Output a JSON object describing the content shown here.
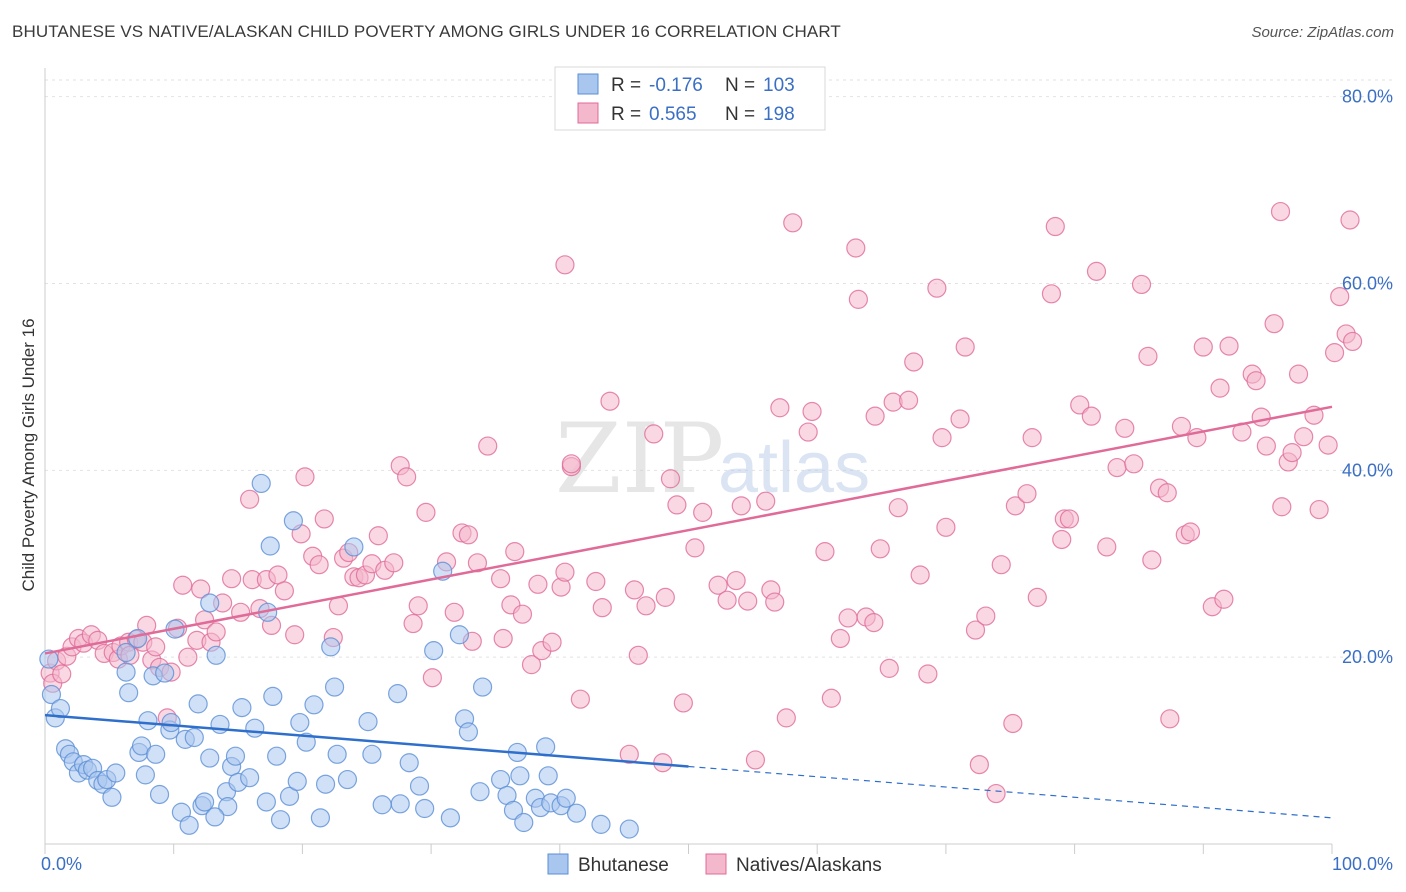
{
  "title": "BHUTANESE VS NATIVE/ALASKAN CHILD POVERTY AMONG GIRLS UNDER 16 CORRELATION CHART",
  "source": "Source: ZipAtlas.com",
  "watermark": {
    "zip": "ZIP",
    "atlas": "atlas"
  },
  "colors": {
    "blue": "#5b8fd6",
    "blue_fill": "#a9c6ee",
    "pink": "#e06a98",
    "pink_fill": "#f4b8cc",
    "tick": "#3b6fc4"
  },
  "legend": {
    "rows": [
      {
        "r_label": "R =",
        "r_value": "-0.176",
        "n_label": "N =",
        "n_value": "103"
      },
      {
        "r_label": "R =",
        "r_value": "0.565",
        "n_label": "N =",
        "n_value": "198"
      }
    ]
  },
  "chart_data": {
    "type": "scatter",
    "title": "BHUTANESE VS NATIVE/ALASKAN CHILD POVERTY AMONG GIRLS UNDER 16 CORRELATION CHART",
    "xlabel": "",
    "ylabel": "Child Poverty Among Girls Under 16",
    "xlim": [
      0,
      100
    ],
    "ylim": [
      0,
      82
    ],
    "x_ticks": [
      "0.0%",
      "100.0%"
    ],
    "y_ticks": [
      {
        "value": 20,
        "label": "20.0%"
      },
      {
        "value": 40,
        "label": "40.0%"
      },
      {
        "value": 60,
        "label": "60.0%"
      },
      {
        "value": 80,
        "label": "80.0%"
      }
    ],
    "grid": true,
    "legend_position": "top-center",
    "series": [
      {
        "name": "Bhutanese",
        "r": -0.176,
        "n": 103,
        "trend": {
          "x0": 0,
          "y0": 13.8,
          "x1": 50,
          "y1": 8.3,
          "dashed_to_x": 100,
          "dashed_to_y": 2.8
        },
        "points": [
          [
            0.3,
            19.8
          ],
          [
            0.5,
            16.0
          ],
          [
            0.8,
            13.5
          ],
          [
            1.2,
            14.5
          ],
          [
            1.6,
            10.2
          ],
          [
            1.9,
            9.6
          ],
          [
            2.2,
            8.8
          ],
          [
            2.6,
            7.6
          ],
          [
            3.0,
            8.5
          ],
          [
            3.3,
            7.9
          ],
          [
            3.7,
            8.1
          ],
          [
            4.1,
            6.8
          ],
          [
            4.5,
            6.4
          ],
          [
            4.8,
            6.9
          ],
          [
            5.2,
            5.0
          ],
          [
            5.5,
            7.6
          ],
          [
            6.3,
            20.5
          ],
          [
            6.5,
            16.2
          ],
          [
            6.3,
            18.4
          ],
          [
            7.3,
            9.8
          ],
          [
            7.5,
            10.5
          ],
          [
            7.8,
            7.4
          ],
          [
            8.0,
            13.2
          ],
          [
            8.4,
            18.0
          ],
          [
            8.6,
            9.6
          ],
          [
            8.9,
            5.3
          ],
          [
            9.3,
            18.3
          ],
          [
            9.7,
            12.2
          ],
          [
            9.8,
            13.0
          ],
          [
            10.1,
            23.0
          ],
          [
            10.6,
            3.4
          ],
          [
            10.9,
            11.2
          ],
          [
            11.2,
            2.0
          ],
          [
            11.6,
            11.4
          ],
          [
            11.9,
            15.0
          ],
          [
            12.2,
            4.1
          ],
          [
            12.4,
            4.5
          ],
          [
            12.8,
            9.2
          ],
          [
            12.8,
            25.8
          ],
          [
            13.3,
            20.2
          ],
          [
            13.6,
            12.8
          ],
          [
            14.1,
            5.6
          ],
          [
            14.2,
            4.0
          ],
          [
            14.5,
            8.3
          ],
          [
            14.8,
            9.4
          ],
          [
            15.0,
            6.6
          ],
          [
            15.3,
            14.6
          ],
          [
            15.9,
            7.1
          ],
          [
            16.3,
            12.4
          ],
          [
            16.8,
            38.6
          ],
          [
            17.3,
            24.8
          ],
          [
            17.5,
            31.9
          ],
          [
            17.7,
            15.8
          ],
          [
            18.0,
            9.4
          ],
          [
            18.3,
            2.6
          ],
          [
            19.0,
            5.1
          ],
          [
            19.3,
            34.6
          ],
          [
            19.6,
            6.7
          ],
          [
            19.8,
            13.0
          ],
          [
            20.3,
            10.9
          ],
          [
            20.9,
            14.9
          ],
          [
            21.4,
            2.8
          ],
          [
            21.8,
            6.4
          ],
          [
            22.2,
            21.1
          ],
          [
            22.5,
            16.8
          ],
          [
            22.7,
            9.6
          ],
          [
            24.0,
            31.8
          ],
          [
            25.1,
            13.1
          ],
          [
            25.4,
            9.6
          ],
          [
            27.6,
            4.3
          ],
          [
            27.4,
            16.1
          ],
          [
            29.5,
            3.8
          ],
          [
            30.2,
            20.7
          ],
          [
            30.9,
            29.2
          ],
          [
            31.5,
            2.8
          ],
          [
            32.2,
            22.4
          ],
          [
            32.6,
            13.4
          ],
          [
            32.9,
            12.0
          ],
          [
            34.0,
            16.8
          ],
          [
            35.4,
            6.9
          ],
          [
            35.9,
            5.2
          ],
          [
            36.4,
            3.6
          ],
          [
            36.7,
            9.8
          ],
          [
            36.9,
            7.3
          ],
          [
            38.1,
            4.9
          ],
          [
            38.5,
            3.9
          ],
          [
            38.9,
            10.4
          ],
          [
            39.1,
            7.3
          ],
          [
            39.3,
            4.4
          ],
          [
            40.1,
            4.1
          ],
          [
            40.5,
            4.9
          ],
          [
            41.3,
            3.3
          ],
          [
            43.2,
            2.1
          ],
          [
            45.4,
            1.6
          ],
          [
            7.2,
            22.0
          ],
          [
            13.2,
            2.9
          ],
          [
            23.5,
            6.9
          ],
          [
            26.2,
            4.2
          ],
          [
            28.3,
            8.7
          ],
          [
            33.8,
            5.6
          ],
          [
            37.2,
            2.3
          ],
          [
            29.1,
            6.2
          ],
          [
            17.2,
            4.5
          ]
        ]
      },
      {
        "name": "Natives/Alaskans",
        "r": 0.565,
        "n": 198,
        "trend": {
          "x0": 0,
          "y0": 20.4,
          "x1": 100,
          "y1": 46.8
        },
        "points": [
          [
            0.4,
            18.3
          ],
          [
            0.6,
            17.2
          ],
          [
            0.9,
            19.6
          ],
          [
            1.3,
            18.2
          ],
          [
            1.7,
            20.1
          ],
          [
            2.1,
            21.1
          ],
          [
            2.6,
            22.0
          ],
          [
            3.0,
            21.5
          ],
          [
            3.6,
            22.4
          ],
          [
            4.1,
            21.8
          ],
          [
            4.6,
            20.4
          ],
          [
            5.3,
            20.5
          ],
          [
            5.7,
            19.8
          ],
          [
            5.9,
            21.2
          ],
          [
            6.5,
            21.6
          ],
          [
            6.6,
            20.2
          ],
          [
            7.1,
            21.9
          ],
          [
            7.6,
            21.6
          ],
          [
            7.9,
            23.4
          ],
          [
            8.3,
            19.7
          ],
          [
            8.6,
            21.1
          ],
          [
            8.9,
            18.9
          ],
          [
            9.5,
            13.5
          ],
          [
            9.8,
            18.4
          ],
          [
            10.3,
            23.1
          ],
          [
            10.7,
            27.7
          ],
          [
            11.1,
            20.0
          ],
          [
            11.8,
            21.8
          ],
          [
            12.1,
            27.3
          ],
          [
            12.4,
            24.0
          ],
          [
            12.9,
            21.6
          ],
          [
            13.3,
            22.7
          ],
          [
            13.8,
            25.8
          ],
          [
            14.5,
            28.4
          ],
          [
            15.2,
            24.8
          ],
          [
            15.9,
            36.9
          ],
          [
            16.1,
            28.3
          ],
          [
            16.7,
            25.2
          ],
          [
            17.2,
            28.3
          ],
          [
            17.6,
            23.4
          ],
          [
            18.1,
            28.8
          ],
          [
            18.6,
            27.1
          ],
          [
            19.4,
            22.4
          ],
          [
            19.9,
            33.2
          ],
          [
            20.2,
            39.3
          ],
          [
            20.8,
            30.8
          ],
          [
            21.3,
            29.9
          ],
          [
            21.7,
            34.8
          ],
          [
            22.4,
            22.1
          ],
          [
            22.8,
            25.5
          ],
          [
            23.2,
            30.6
          ],
          [
            23.6,
            31.2
          ],
          [
            24.0,
            28.6
          ],
          [
            24.4,
            28.5
          ],
          [
            24.9,
            28.8
          ],
          [
            25.4,
            30.0
          ],
          [
            25.9,
            33.0
          ],
          [
            26.4,
            29.3
          ],
          [
            27.1,
            30.1
          ],
          [
            27.6,
            40.5
          ],
          [
            28.1,
            39.3
          ],
          [
            28.6,
            23.6
          ],
          [
            29.0,
            25.5
          ],
          [
            29.6,
            35.5
          ],
          [
            30.1,
            17.8
          ],
          [
            31.2,
            30.2
          ],
          [
            31.8,
            24.8
          ],
          [
            32.4,
            33.3
          ],
          [
            32.9,
            33.1
          ],
          [
            33.2,
            21.7
          ],
          [
            33.6,
            30.1
          ],
          [
            34.4,
            42.6
          ],
          [
            35.4,
            28.4
          ],
          [
            35.6,
            22.0
          ],
          [
            36.2,
            25.6
          ],
          [
            36.5,
            31.3
          ],
          [
            37.1,
            24.6
          ],
          [
            37.8,
            19.2
          ],
          [
            38.3,
            27.8
          ],
          [
            38.6,
            20.7
          ],
          [
            39.4,
            21.6
          ],
          [
            40.1,
            27.5
          ],
          [
            40.4,
            29.1
          ],
          [
            40.9,
            40.4
          ],
          [
            41.6,
            15.5
          ],
          [
            42.8,
            28.1
          ],
          [
            43.3,
            25.3
          ],
          [
            43.9,
            47.4
          ],
          [
            45.4,
            9.6
          ],
          [
            45.8,
            27.2
          ],
          [
            46.1,
            20.2
          ],
          [
            46.7,
            25.5
          ],
          [
            47.3,
            43.9
          ],
          [
            48.2,
            26.4
          ],
          [
            48.6,
            39.1
          ],
          [
            49.1,
            36.3
          ],
          [
            49.6,
            15.1
          ],
          [
            50.5,
            31.7
          ],
          [
            51.1,
            35.5
          ],
          [
            52.3,
            27.7
          ],
          [
            53.0,
            26.1
          ],
          [
            53.7,
            28.2
          ],
          [
            54.1,
            36.2
          ],
          [
            54.6,
            26.0
          ],
          [
            55.2,
            9.0
          ],
          [
            56.0,
            36.7
          ],
          [
            56.4,
            27.2
          ],
          [
            56.7,
            25.9
          ],
          [
            57.1,
            46.7
          ],
          [
            57.6,
            13.5
          ],
          [
            58.1,
            66.5
          ],
          [
            59.3,
            44.1
          ],
          [
            59.6,
            46.3
          ],
          [
            60.6,
            31.3
          ],
          [
            61.1,
            15.6
          ],
          [
            61.8,
            22.0
          ],
          [
            62.4,
            24.2
          ],
          [
            63.0,
            63.8
          ],
          [
            63.2,
            58.3
          ],
          [
            63.8,
            24.3
          ],
          [
            64.5,
            45.8
          ],
          [
            64.9,
            31.6
          ],
          [
            65.6,
            18.8
          ],
          [
            65.9,
            47.3
          ],
          [
            66.3,
            36.0
          ],
          [
            67.1,
            47.5
          ],
          [
            67.5,
            51.6
          ],
          [
            68.0,
            28.8
          ],
          [
            68.6,
            18.2
          ],
          [
            69.3,
            59.5
          ],
          [
            69.7,
            43.5
          ],
          [
            70.0,
            33.9
          ],
          [
            71.1,
            45.5
          ],
          [
            71.5,
            53.2
          ],
          [
            72.3,
            22.9
          ],
          [
            72.6,
            8.5
          ],
          [
            73.1,
            24.4
          ],
          [
            73.9,
            5.4
          ],
          [
            74.3,
            29.9
          ],
          [
            75.2,
            12.9
          ],
          [
            75.4,
            36.2
          ],
          [
            76.3,
            37.5
          ],
          [
            76.7,
            43.5
          ],
          [
            77.1,
            26.4
          ],
          [
            78.2,
            58.9
          ],
          [
            78.5,
            66.1
          ],
          [
            79.0,
            32.6
          ],
          [
            79.2,
            34.8
          ],
          [
            79.6,
            34.8
          ],
          [
            80.4,
            47.0
          ],
          [
            81.3,
            45.8
          ],
          [
            81.7,
            61.3
          ],
          [
            82.5,
            31.8
          ],
          [
            83.3,
            40.3
          ],
          [
            83.9,
            44.5
          ],
          [
            84.6,
            40.7
          ],
          [
            85.2,
            59.9
          ],
          [
            85.7,
            52.2
          ],
          [
            86.0,
            30.4
          ],
          [
            86.6,
            38.1
          ],
          [
            87.2,
            37.6
          ],
          [
            87.4,
            13.4
          ],
          [
            88.3,
            44.7
          ],
          [
            88.6,
            33.1
          ],
          [
            89.0,
            33.4
          ],
          [
            89.5,
            43.5
          ],
          [
            90.0,
            53.2
          ],
          [
            90.7,
            25.4
          ],
          [
            91.3,
            48.8
          ],
          [
            91.6,
            26.2
          ],
          [
            92.0,
            53.3
          ],
          [
            93.0,
            44.1
          ],
          [
            93.8,
            50.3
          ],
          [
            94.1,
            49.6
          ],
          [
            94.5,
            45.7
          ],
          [
            94.9,
            42.6
          ],
          [
            95.5,
            55.7
          ],
          [
            96.1,
            36.1
          ],
          [
            96.6,
            40.9
          ],
          [
            96.9,
            41.9
          ],
          [
            97.4,
            50.3
          ],
          [
            97.8,
            43.6
          ],
          [
            98.6,
            45.9
          ],
          [
            99.0,
            35.8
          ],
          [
            99.7,
            42.7
          ],
          [
            100.2,
            52.6
          ],
          [
            101.1,
            54.6
          ],
          [
            101.6,
            53.8
          ],
          [
            100.6,
            58.6
          ],
          [
            96.0,
            67.7
          ],
          [
            101.4,
            66.8
          ],
          [
            40.4,
            62.0
          ],
          [
            48.0,
            8.7
          ],
          [
            64.4,
            23.7
          ],
          [
            40.9,
            40.7
          ]
        ]
      }
    ]
  },
  "bottom_legend": {
    "items": [
      {
        "label": "Bhutanese"
      },
      {
        "label": "Natives/Alaskans"
      }
    ]
  }
}
